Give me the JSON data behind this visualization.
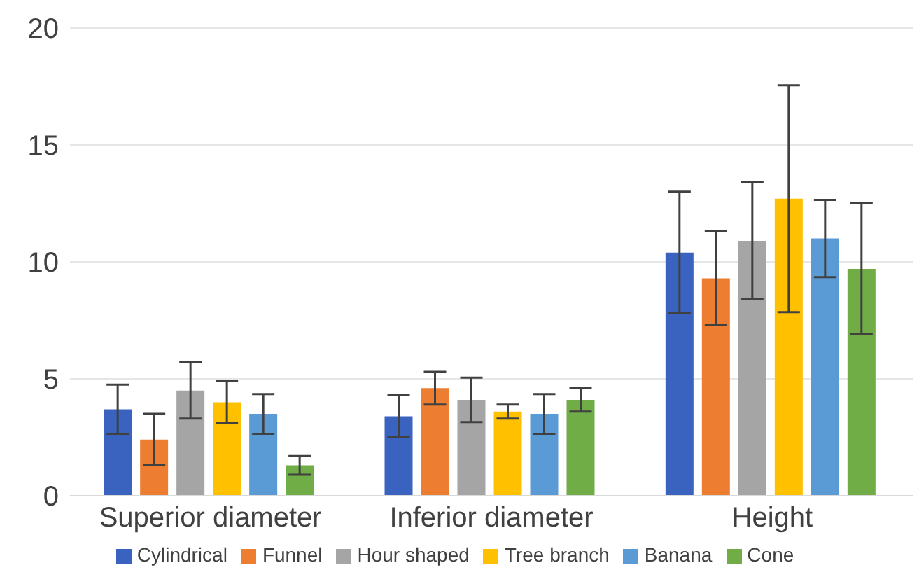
{
  "chart_data": {
    "type": "bar",
    "categories": [
      "Superior diameter",
      "Inferior diameter",
      "Height"
    ],
    "series": [
      {
        "name": "Cylindrical",
        "color": "#3a63c0",
        "values": [
          3.7,
          3.4,
          10.4
        ],
        "errors": [
          1.05,
          0.9,
          2.6
        ]
      },
      {
        "name": "Funnel",
        "color": "#ed7d31",
        "values": [
          2.4,
          4.6,
          9.3
        ],
        "errors": [
          1.1,
          0.7,
          2.0
        ]
      },
      {
        "name": "Hour shaped",
        "color": "#a5a5a5",
        "values": [
          4.5,
          4.1,
          10.9
        ],
        "errors": [
          1.2,
          0.95,
          2.5
        ]
      },
      {
        "name": "Tree branch",
        "color": "#ffc000",
        "values": [
          4.0,
          3.6,
          12.7
        ],
        "errors": [
          0.9,
          0.3,
          4.85
        ]
      },
      {
        "name": "Banana",
        "color": "#5b9bd5",
        "values": [
          3.5,
          3.5,
          11.0
        ],
        "errors": [
          0.85,
          0.85,
          1.65
        ]
      },
      {
        "name": "Cone",
        "color": "#70ad47",
        "values": [
          1.3,
          4.1,
          9.7
        ],
        "errors": [
          0.4,
          0.5,
          2.8
        ]
      }
    ],
    "ylim": [
      0,
      20
    ],
    "yticks": [
      0,
      5,
      10,
      15,
      20
    ],
    "grid": "y",
    "legend": "bottom"
  }
}
